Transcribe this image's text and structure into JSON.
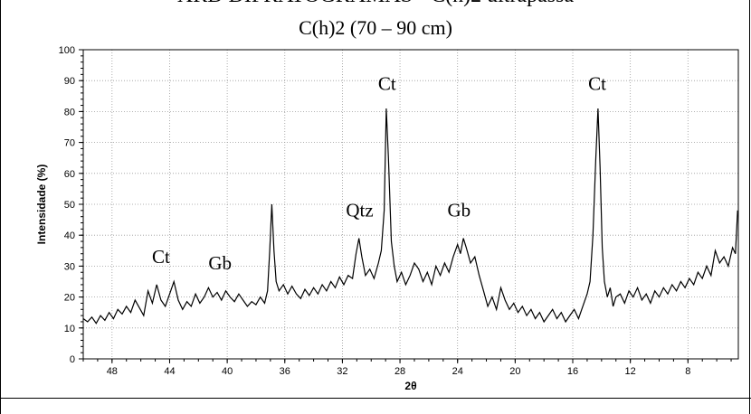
{
  "header": {
    "cutoff_text": "XRD DIFRATOGRAMAS - C(h)2 ultrapassa"
  },
  "chart_data": {
    "type": "line",
    "title": "C(h)2 (70 – 90 cm)",
    "xlabel": "2θ",
    "ylabel": "Intensidade (%)",
    "x_reversed": true,
    "xlim": [
      50,
      4.5
    ],
    "ylim": [
      0,
      100
    ],
    "grid": true,
    "line_color": "#000000",
    "x_ticks": [
      48,
      44,
      40,
      36,
      32,
      28,
      24,
      20,
      16,
      12,
      8
    ],
    "y_ticks": [
      0,
      10,
      20,
      30,
      40,
      50,
      60,
      70,
      80,
      90,
      100
    ],
    "series": [
      {
        "points": [
          [
            50,
            13
          ],
          [
            49.7,
            12
          ],
          [
            49.4,
            13.5
          ],
          [
            49.1,
            11.5
          ],
          [
            48.8,
            14
          ],
          [
            48.5,
            12.5
          ],
          [
            48.2,
            15
          ],
          [
            47.9,
            13
          ],
          [
            47.6,
            16
          ],
          [
            47.3,
            14.5
          ],
          [
            47,
            17
          ],
          [
            46.7,
            15
          ],
          [
            46.4,
            19
          ],
          [
            46.1,
            16.5
          ],
          [
            45.8,
            14
          ],
          [
            45.5,
            22
          ],
          [
            45.2,
            18
          ],
          [
            44.9,
            24
          ],
          [
            44.6,
            19
          ],
          [
            44.3,
            17
          ],
          [
            44,
            21
          ],
          [
            43.7,
            25
          ],
          [
            43.4,
            19
          ],
          [
            43.1,
            16
          ],
          [
            42.8,
            18.5
          ],
          [
            42.5,
            17
          ],
          [
            42.2,
            21
          ],
          [
            41.9,
            18
          ],
          [
            41.6,
            20
          ],
          [
            41.3,
            23
          ],
          [
            41,
            20
          ],
          [
            40.7,
            21.5
          ],
          [
            40.4,
            19
          ],
          [
            40.1,
            22
          ],
          [
            39.8,
            20
          ],
          [
            39.5,
            18.5
          ],
          [
            39.2,
            21
          ],
          [
            38.9,
            19
          ],
          [
            38.6,
            17
          ],
          [
            38.3,
            18.5
          ],
          [
            38,
            17.5
          ],
          [
            37.7,
            20
          ],
          [
            37.4,
            18
          ],
          [
            37.2,
            22
          ],
          [
            37.05,
            35
          ],
          [
            36.9,
            50
          ],
          [
            36.75,
            35
          ],
          [
            36.6,
            25
          ],
          [
            36.4,
            22
          ],
          [
            36.1,
            24
          ],
          [
            35.8,
            21
          ],
          [
            35.5,
            23.5
          ],
          [
            35.2,
            21
          ],
          [
            34.9,
            19.5
          ],
          [
            34.6,
            22.5
          ],
          [
            34.3,
            20.5
          ],
          [
            34,
            23
          ],
          [
            33.7,
            21
          ],
          [
            33.4,
            24
          ],
          [
            33.1,
            22
          ],
          [
            32.8,
            25
          ],
          [
            32.5,
            23
          ],
          [
            32.2,
            26.5
          ],
          [
            31.9,
            24
          ],
          [
            31.6,
            27
          ],
          [
            31.3,
            26
          ],
          [
            31.05,
            34
          ],
          [
            30.85,
            39
          ],
          [
            30.65,
            33
          ],
          [
            30.4,
            27
          ],
          [
            30.1,
            29
          ],
          [
            29.8,
            26
          ],
          [
            29.5,
            31
          ],
          [
            29.3,
            35
          ],
          [
            29.1,
            48
          ],
          [
            28.95,
            81
          ],
          [
            28.8,
            65
          ],
          [
            28.6,
            38
          ],
          [
            28.4,
            30
          ],
          [
            28.2,
            25
          ],
          [
            27.9,
            28
          ],
          [
            27.6,
            24
          ],
          [
            27.3,
            27
          ],
          [
            27,
            31
          ],
          [
            26.7,
            29
          ],
          [
            26.4,
            25
          ],
          [
            26.1,
            28
          ],
          [
            25.8,
            24
          ],
          [
            25.5,
            30
          ],
          [
            25.2,
            27
          ],
          [
            24.9,
            31
          ],
          [
            24.6,
            28
          ],
          [
            24.3,
            33
          ],
          [
            24,
            37
          ],
          [
            23.8,
            34
          ],
          [
            23.6,
            39
          ],
          [
            23.4,
            36
          ],
          [
            23.1,
            31
          ],
          [
            22.8,
            33
          ],
          [
            22.5,
            27
          ],
          [
            22.2,
            22
          ],
          [
            21.9,
            17
          ],
          [
            21.6,
            20
          ],
          [
            21.3,
            16
          ],
          [
            21,
            23
          ],
          [
            20.7,
            19
          ],
          [
            20.4,
            16
          ],
          [
            20.1,
            18
          ],
          [
            19.8,
            15
          ],
          [
            19.5,
            17
          ],
          [
            19.2,
            14
          ],
          [
            18.9,
            16
          ],
          [
            18.6,
            13
          ],
          [
            18.3,
            15
          ],
          [
            18,
            12
          ],
          [
            17.7,
            14
          ],
          [
            17.4,
            16
          ],
          [
            17.1,
            13
          ],
          [
            16.8,
            15
          ],
          [
            16.5,
            12
          ],
          [
            16.2,
            14
          ],
          [
            15.9,
            16
          ],
          [
            15.6,
            13
          ],
          [
            15.3,
            17
          ],
          [
            15,
            21
          ],
          [
            14.8,
            25
          ],
          [
            14.6,
            40
          ],
          [
            14.4,
            65
          ],
          [
            14.25,
            81
          ],
          [
            14.1,
            62
          ],
          [
            13.95,
            36
          ],
          [
            13.8,
            25
          ],
          [
            13.6,
            20
          ],
          [
            13.4,
            23
          ],
          [
            13.2,
            17
          ],
          [
            13,
            20
          ],
          [
            12.7,
            21
          ],
          [
            12.4,
            18
          ],
          [
            12.1,
            22
          ],
          [
            11.8,
            20
          ],
          [
            11.5,
            23
          ],
          [
            11.2,
            19
          ],
          [
            10.9,
            21
          ],
          [
            10.6,
            18
          ],
          [
            10.3,
            22
          ],
          [
            10,
            20
          ],
          [
            9.7,
            23
          ],
          [
            9.4,
            21
          ],
          [
            9.1,
            24
          ],
          [
            8.8,
            22
          ],
          [
            8.5,
            25
          ],
          [
            8.2,
            23
          ],
          [
            7.9,
            26
          ],
          [
            7.6,
            24
          ],
          [
            7.3,
            28
          ],
          [
            7,
            26
          ],
          [
            6.7,
            30
          ],
          [
            6.4,
            27
          ],
          [
            6.1,
            35
          ],
          [
            5.8,
            31
          ],
          [
            5.5,
            33
          ],
          [
            5.2,
            30
          ],
          [
            4.9,
            36
          ],
          [
            4.7,
            34
          ],
          [
            4.55,
            48
          ]
        ]
      }
    ],
    "annotations": [
      {
        "text": "Ct",
        "x": 44.6,
        "y": 31
      },
      {
        "text": "Gb",
        "x": 40.5,
        "y": 29
      },
      {
        "text": "Qtz",
        "x": 30.8,
        "y": 46
      },
      {
        "text": "Ct",
        "x": 28.9,
        "y": 87
      },
      {
        "text": "Gb",
        "x": 23.9,
        "y": 46
      },
      {
        "text": "Ct",
        "x": 14.3,
        "y": 87
      }
    ]
  }
}
